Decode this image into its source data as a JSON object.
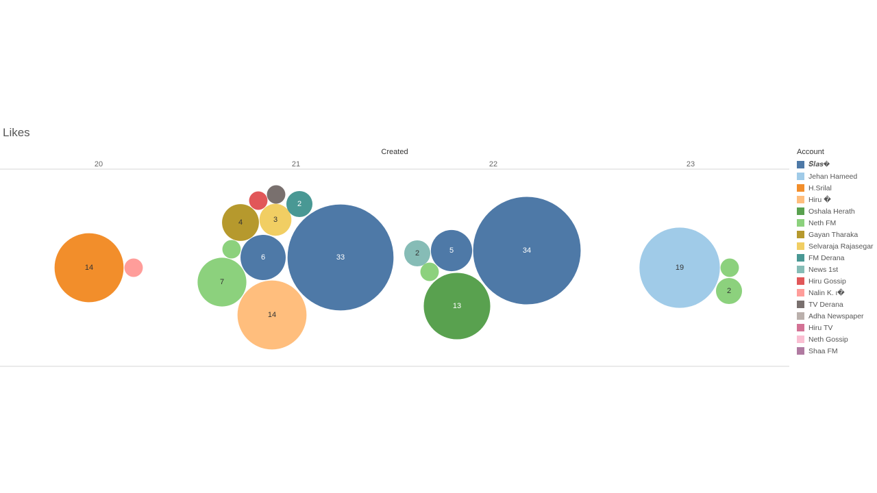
{
  "chart_data": {
    "type": "bubble",
    "title": "Likes",
    "xlabel": "Created",
    "columns": [
      "20",
      "21",
      "22",
      "23"
    ],
    "legend": {
      "title": "Account",
      "placement": "right",
      "items": [
        {
          "name": "𝑺𝒍𝒂𝒔�",
          "color": "#4e79a7"
        },
        {
          "name": "Jehan Hameed",
          "color": "#a0cbe8"
        },
        {
          "name": "H.Srilal",
          "color": "#f28e2b"
        },
        {
          "name": "Hiru �",
          "color": "#ffbe7d"
        },
        {
          "name": "Oshala Herath",
          "color": "#59a14f"
        },
        {
          "name": "Neth FM",
          "color": "#8cd17d"
        },
        {
          "name": "Gayan Tharaka",
          "color": "#b6992d"
        },
        {
          "name": "Selvaraja Rajasegar",
          "color": "#f1ce63"
        },
        {
          "name": "FM Derana",
          "color": "#499894"
        },
        {
          "name": "News 1st",
          "color": "#86bcb6"
        },
        {
          "name": "Hiru Gossip",
          "color": "#e15759"
        },
        {
          "name": "Nalin K. ι�",
          "color": "#ff9d9a"
        },
        {
          "name": "TV Derana",
          "color": "#79706e"
        },
        {
          "name": "Adha Newspaper",
          "color": "#bab0ac"
        },
        {
          "name": "Hiru TV",
          "color": "#d37295"
        },
        {
          "name": "Neth Gossip",
          "color": "#fabfd2"
        },
        {
          "name": "Shaa FM",
          "color": "#b07aa1"
        }
      ]
    },
    "bubbles": [
      {
        "column": "20",
        "account": "H.Srilal",
        "likes": 14,
        "label": "14"
      },
      {
        "column": "20",
        "account": "Nalin K. ι�",
        "likes": 1,
        "label": ""
      },
      {
        "column": "21",
        "account": "𝑺𝒍𝒂𝒔�",
        "likes": 33,
        "label": "33"
      },
      {
        "column": "21",
        "account": "Hiru �",
        "likes": 14,
        "label": "14"
      },
      {
        "column": "21",
        "account": "Neth FM",
        "likes": 7,
        "label": "7"
      },
      {
        "column": "21",
        "account": "𝑺𝒍𝒂𝒔�",
        "likes": 6,
        "label": "6"
      },
      {
        "column": "21",
        "account": "Gayan Tharaka",
        "likes": 4,
        "label": "4"
      },
      {
        "column": "21",
        "account": "Selvaraja Rajasegar",
        "likes": 3,
        "label": "3"
      },
      {
        "column": "21",
        "account": "FM Derana",
        "likes": 2,
        "label": "2"
      },
      {
        "column": "21",
        "account": "Hiru Gossip",
        "likes": 1,
        "label": ""
      },
      {
        "column": "21",
        "account": "TV Derana",
        "likes": 1,
        "label": ""
      },
      {
        "column": "21",
        "account": "Neth FM",
        "likes": 1,
        "label": ""
      },
      {
        "column": "22",
        "account": "𝑺𝒍𝒂𝒔�",
        "likes": 34,
        "label": "34"
      },
      {
        "column": "22",
        "account": "Oshala Herath",
        "likes": 13,
        "label": "13"
      },
      {
        "column": "22",
        "account": "𝑺𝒍𝒂𝒔�",
        "likes": 5,
        "label": "5"
      },
      {
        "column": "22",
        "account": "News 1st",
        "likes": 2,
        "label": "2"
      },
      {
        "column": "22",
        "account": "Neth FM",
        "likes": 1,
        "label": ""
      },
      {
        "column": "23",
        "account": "Jehan Hameed",
        "likes": 19,
        "label": "19"
      },
      {
        "column": "23",
        "account": "Neth FM",
        "likes": 2,
        "label": "2"
      },
      {
        "column": "23",
        "account": "Neth FM",
        "likes": 1,
        "label": ""
      }
    ]
  }
}
